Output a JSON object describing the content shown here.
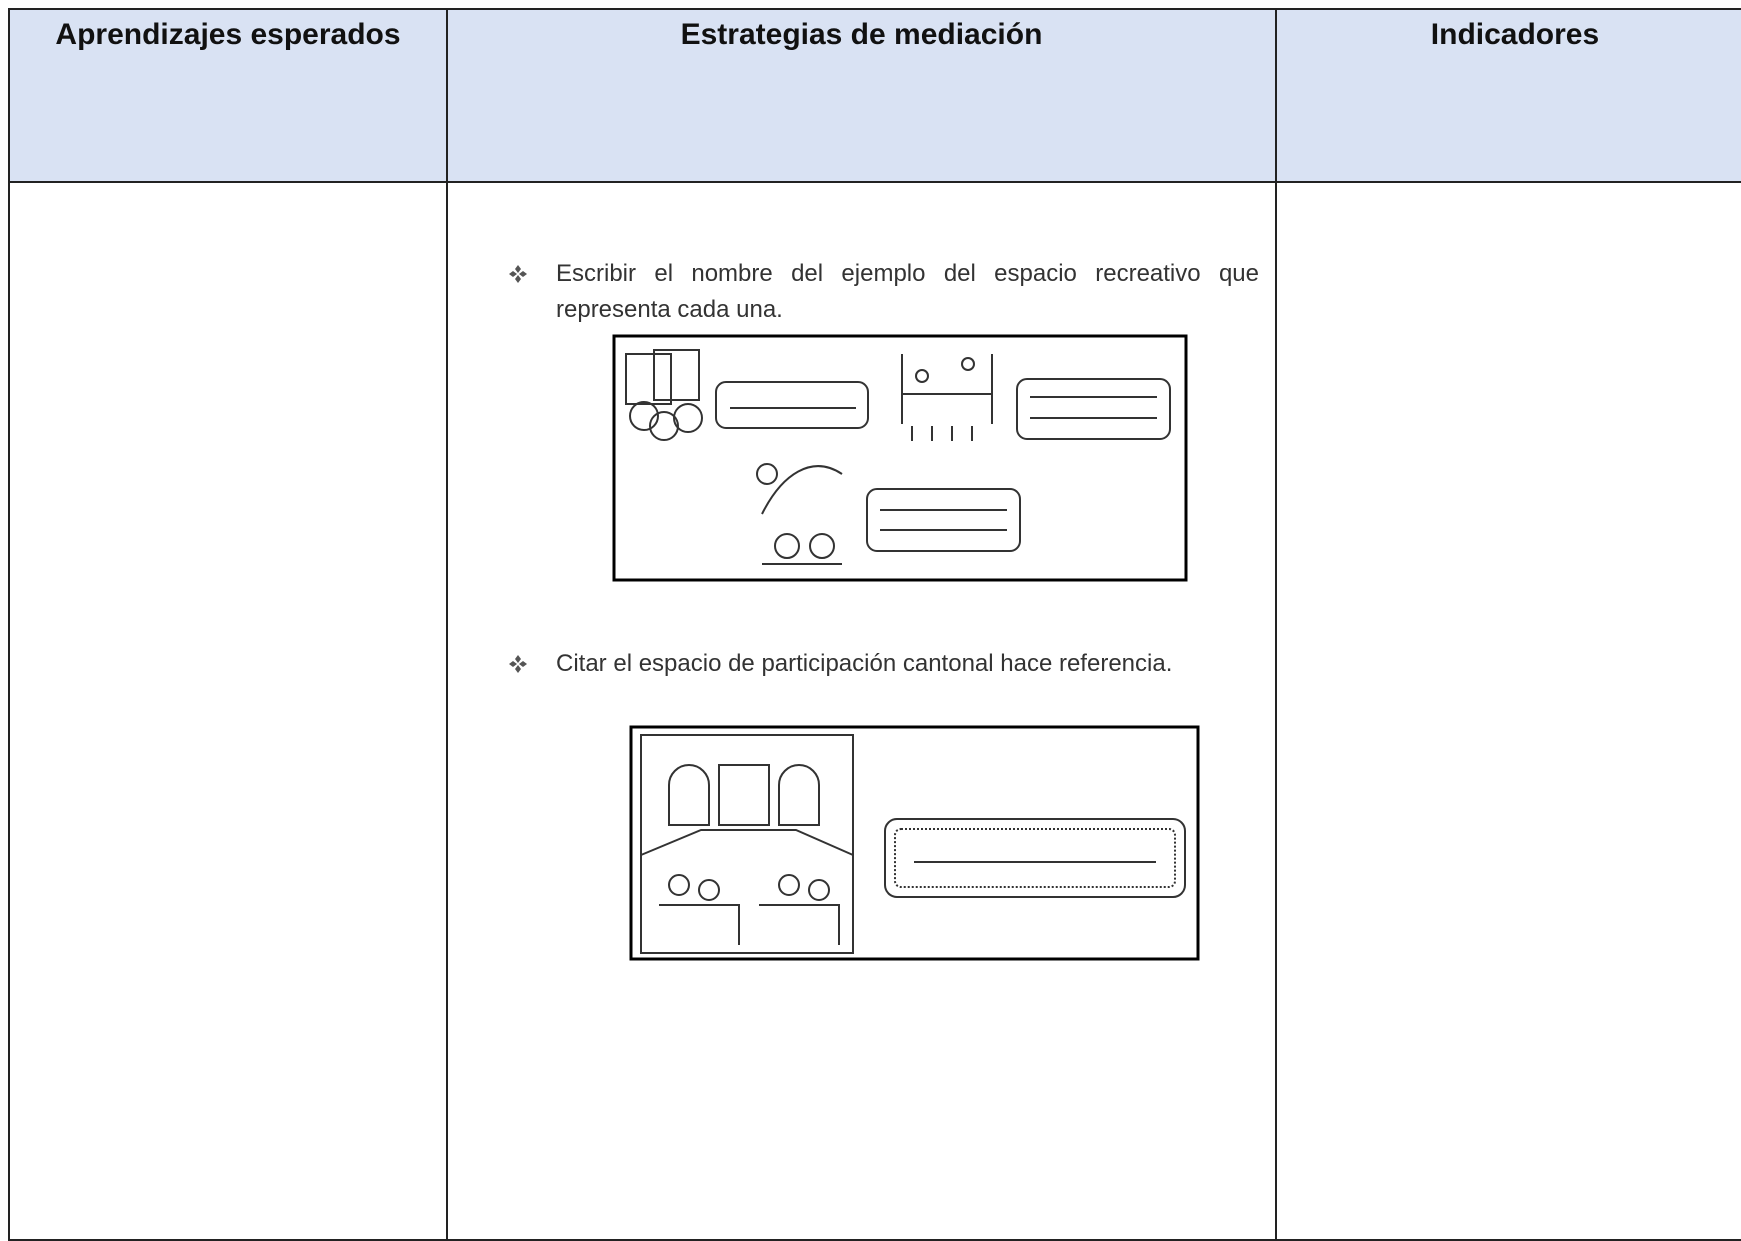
{
  "table": {
    "headers": [
      "Aprendizajes esperados",
      "Estrategias de mediación",
      "Indicadores"
    ]
  },
  "activities": [
    "Escribir el nombre del ejemplo del espacio recreativo que representa cada una.",
    "Citar el espacio de participación cantonal hace referencia."
  ]
}
